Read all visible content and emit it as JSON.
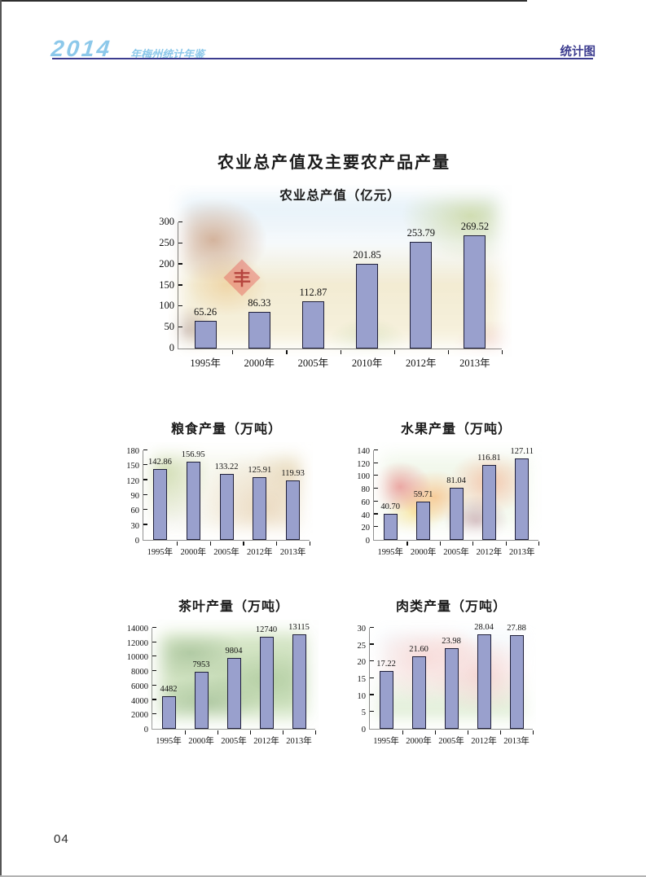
{
  "header": {
    "year_logo": "2014",
    "yearbook_suffix": "年梅州统计年鉴",
    "section_label": "统计图"
  },
  "page": {
    "title": "农业总产值及主要农产品产量",
    "page_number": "04"
  },
  "colors": {
    "accent": "#8cc8ea",
    "rule": "#3c3c8f",
    "bar_fill": "#99a0cd",
    "bar_border": "#20203a"
  },
  "chart_data": [
    {
      "id": "agri",
      "type": "bar",
      "title": "农业总产值（亿元）",
      "categories": [
        "1995年",
        "2000年",
        "2005年",
        "2010年",
        "2012年",
        "2013年"
      ],
      "values": [
        65.26,
        86.33,
        112.87,
        201.85,
        253.79,
        269.52
      ],
      "labels": [
        "65.26",
        "86.33",
        "112.87",
        "201.85",
        "253.79",
        "269.52"
      ],
      "ylim": [
        0,
        300
      ],
      "ytick_step": 50,
      "grid": false,
      "legend": false,
      "seal_text": "丰"
    },
    {
      "id": "grain",
      "type": "bar",
      "title": "粮食产量（万吨）",
      "categories": [
        "1995年",
        "2000年",
        "2005年",
        "2012年",
        "2013年"
      ],
      "values": [
        142.86,
        156.95,
        133.22,
        125.91,
        119.93
      ],
      "labels": [
        "142.86",
        "156.95",
        "133.22",
        "125.91",
        "119.93"
      ],
      "ylim": [
        0,
        180
      ],
      "ytick_step": 30,
      "grid": false,
      "legend": false
    },
    {
      "id": "fruit",
      "type": "bar",
      "title": "水果产量（万吨）",
      "categories": [
        "1995年",
        "2000年",
        "2005年",
        "2012年",
        "2013年"
      ],
      "values": [
        40.7,
        59.71,
        81.04,
        116.81,
        127.11
      ],
      "labels": [
        "40.70",
        "59.71",
        "81.04",
        "116.81",
        "127.11"
      ],
      "ylim": [
        0,
        140
      ],
      "ytick_step": 20,
      "grid": false,
      "legend": false
    },
    {
      "id": "tea",
      "type": "bar",
      "title": "茶叶产量（万吨）",
      "categories": [
        "1995年",
        "2000年",
        "2005年",
        "2012年",
        "2013年"
      ],
      "values": [
        4482,
        7953,
        9804,
        12740,
        13115
      ],
      "labels": [
        "4482",
        "7953",
        "9804",
        "12740",
        "13115"
      ],
      "ylim": [
        0,
        14000
      ],
      "ytick_step": 2000,
      "grid": false,
      "legend": false
    },
    {
      "id": "meat",
      "type": "bar",
      "title": "肉类产量（万吨）",
      "categories": [
        "1995年",
        "2000年",
        "2005年",
        "2012年",
        "2013年"
      ],
      "values": [
        17.22,
        21.6,
        23.98,
        28.04,
        27.88
      ],
      "labels": [
        "17.22",
        "21.60",
        "23.98",
        "28.04",
        "27.88"
      ],
      "ylim": [
        0,
        30
      ],
      "ytick_step": 5,
      "grid": false,
      "legend": false
    }
  ]
}
